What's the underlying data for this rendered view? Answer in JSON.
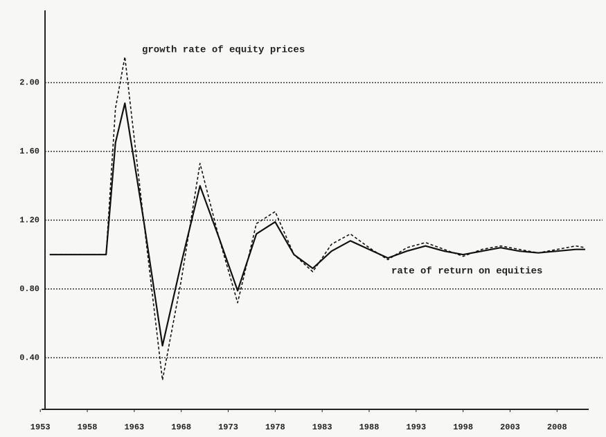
{
  "chart_data": {
    "type": "line",
    "x": [
      1954,
      1960,
      1961,
      1962,
      1964,
      1966,
      1968,
      1970,
      1972,
      1974,
      1976,
      1978,
      1980,
      1982,
      1984,
      1986,
      1988,
      1990,
      1992,
      1994,
      1996,
      1998,
      2000,
      2002,
      2004,
      2006,
      2008,
      2010,
      2011
    ],
    "series": [
      {
        "name": "rate of return on equities",
        "color": "#111111",
        "dash": false,
        "values": [
          1.0,
          1.0,
          1.65,
          1.88,
          1.2,
          0.47,
          0.95,
          1.4,
          1.1,
          0.79,
          1.12,
          1.19,
          1.0,
          0.92,
          1.02,
          1.08,
          1.03,
          0.98,
          1.02,
          1.05,
          1.02,
          1.0,
          1.02,
          1.04,
          1.02,
          1.01,
          1.02,
          1.03,
          1.03
        ]
      },
      {
        "name": "growth rate of equity prices",
        "color": "#111111",
        "dash": true,
        "values": [
          1.0,
          1.0,
          1.85,
          2.15,
          1.2,
          0.27,
          0.85,
          1.53,
          1.1,
          0.72,
          1.18,
          1.25,
          1.0,
          0.9,
          1.06,
          1.12,
          1.04,
          0.97,
          1.04,
          1.07,
          1.03,
          0.99,
          1.03,
          1.05,
          1.03,
          1.01,
          1.03,
          1.05,
          1.04
        ]
      }
    ],
    "xlim": [
      1953.5,
      2011
    ],
    "xticks": [
      1953,
      1958,
      1963,
      1968,
      1973,
      1978,
      1983,
      1988,
      1993,
      1998,
      2003,
      2008
    ],
    "ylim": [
      0.1,
      2.42
    ],
    "yticks": [
      {
        "value": 0.4,
        "label": "0.40"
      },
      {
        "value": 0.8,
        "label": "0.80"
      },
      {
        "value": 1.2,
        "label": "1.20"
      },
      {
        "value": 1.6,
        "label": "1.60"
      },
      {
        "value": 2.0,
        "label": "2.00"
      }
    ],
    "grid": true
  }
}
